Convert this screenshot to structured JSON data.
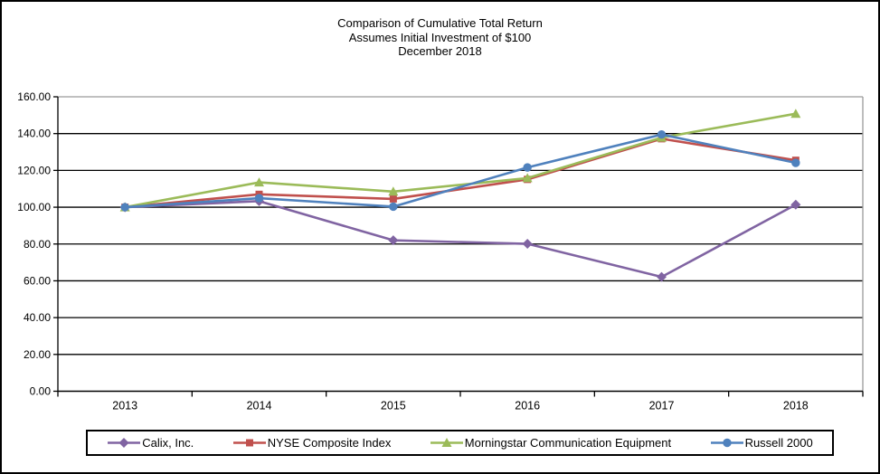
{
  "window": {
    "background": "#ffffff",
    "border_color": "#000000"
  },
  "title": {
    "line1": "Comparison of Cumulative Total Return",
    "line2": "Assumes Initial Investment of $100",
    "line3": "December 2018"
  },
  "chart_data": {
    "type": "line",
    "title": "Comparison of Cumulative Total Return",
    "subtitle": "Assumes Initial Investment of $100",
    "date_label": "December 2018",
    "categories": [
      "2013",
      "2014",
      "2015",
      "2016",
      "2017",
      "2018"
    ],
    "series": [
      {
        "name": "Calix, Inc.",
        "marker": "diamond",
        "color": "#8064A2",
        "values": [
          100.0,
          103.3,
          82.0,
          80.1,
          62.1,
          101.4
        ]
      },
      {
        "name": "NYSE Composite Index",
        "marker": "square",
        "color": "#C0504D",
        "values": [
          100.0,
          107.0,
          104.5,
          115.1,
          137.2,
          125.5
        ]
      },
      {
        "name": "Morningstar Communication Equipment",
        "marker": "triangle",
        "color": "#9BBB59",
        "values": [
          100.0,
          113.5,
          108.5,
          115.8,
          137.8,
          150.8
        ]
      },
      {
        "name": "Russell 2000",
        "marker": "circle",
        "color": "#4F81BD",
        "values": [
          100.0,
          104.9,
          100.3,
          121.6,
          139.5,
          124.1
        ]
      }
    ],
    "xlabel": "",
    "ylabel": "",
    "ylim": [
      0,
      160
    ],
    "y_tick_step": 20,
    "y_tick_labels": [
      "0.00",
      "20.00",
      "40.00",
      "60.00",
      "80.00",
      "100.00",
      "120.00",
      "140.00",
      "160.00"
    ],
    "grid": true,
    "gridline_color": "#000000",
    "plot_border_color": "#9a9a9a",
    "axis_color": "#000000",
    "legend_position": "bottom"
  }
}
